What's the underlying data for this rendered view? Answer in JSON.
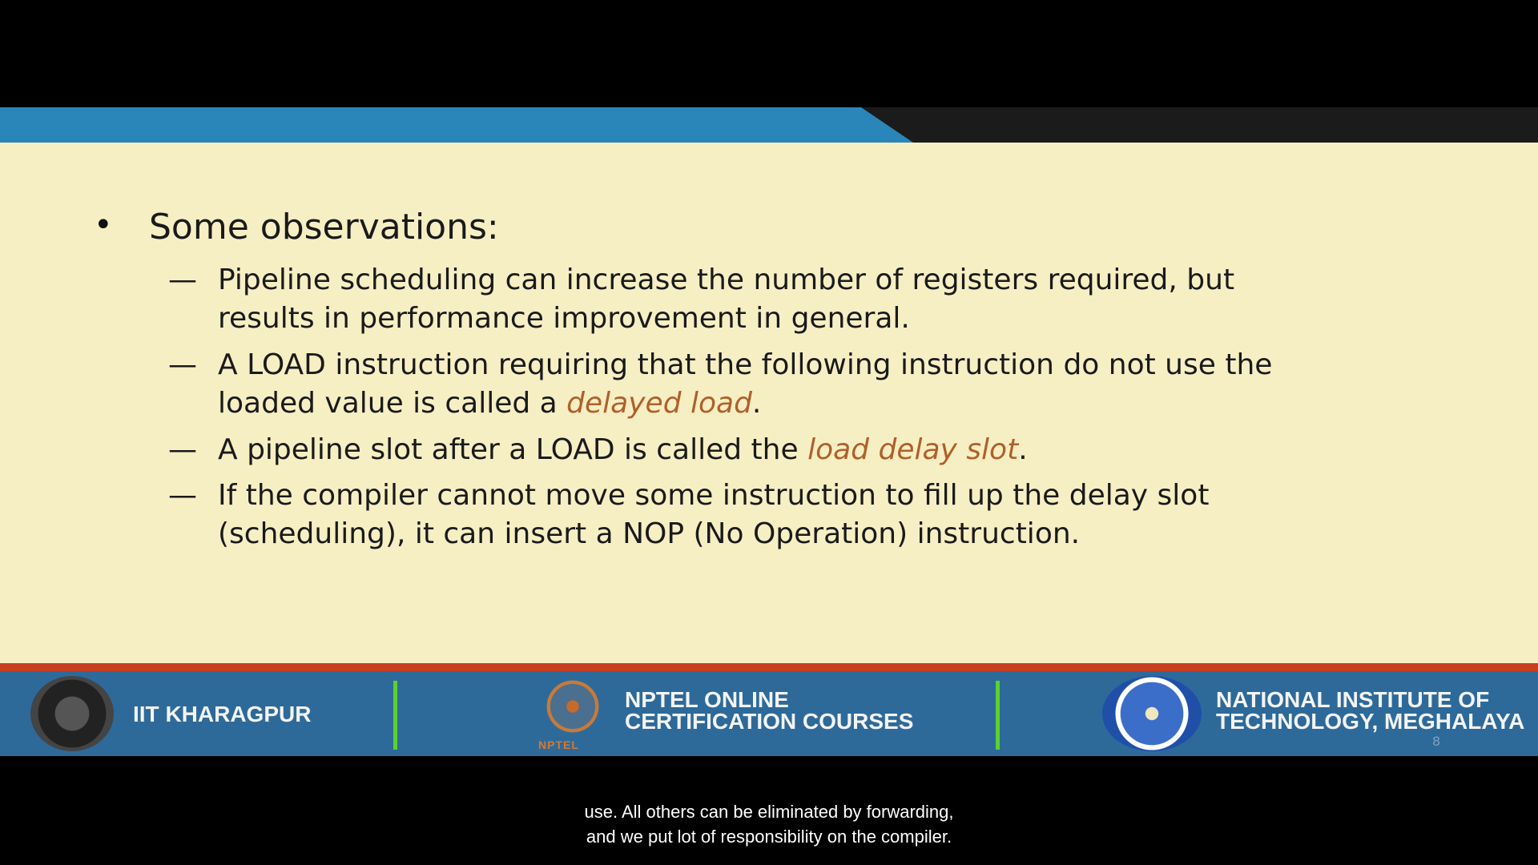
{
  "slide": {
    "heading": "Some observations:",
    "bullet_symbol": "•",
    "dash_symbol": "—",
    "items": [
      {
        "line1": "Pipeline scheduling can increase the number of registers required, but",
        "line2": "results in performance improvement in general."
      },
      {
        "line1": "A LOAD instruction requiring that the following instruction do not use the",
        "line2_prefix": "loaded value is called a ",
        "line2_emph": "delayed load",
        "line2_suffix": "."
      },
      {
        "line1_prefix": "A pipeline slot after a LOAD is called the ",
        "line1_emph": "load delay slot",
        "line1_suffix": "."
      },
      {
        "line1": "If the compiler cannot move some instruction to fill up the delay slot",
        "line2": "(scheduling), it can insert a NOP (No Operation) instruction."
      }
    ],
    "emphasis_color": "#b0602a",
    "background_color": "#f7efc4",
    "header_blue": "#2a86b8"
  },
  "footer": {
    "left_label": "IIT KHARAGPUR",
    "center_label_line1": "NPTEL ONLINE",
    "center_label_line2": "CERTIFICATION COURSES",
    "center_logo_sub": "NPTEL",
    "right_label_line1": "NATIONAL INSTITUTE OF",
    "right_label_line2": "TECHNOLOGY, MEGHALAYA",
    "page_number": "8",
    "background_color": "#2d6a9a",
    "separator_color": "#5bd12f",
    "accent_red": "#c8401f"
  },
  "caption": {
    "line1": "use. All others can be eliminated by forwarding,",
    "line2": "and we put lot of responsibility on the compiler."
  }
}
